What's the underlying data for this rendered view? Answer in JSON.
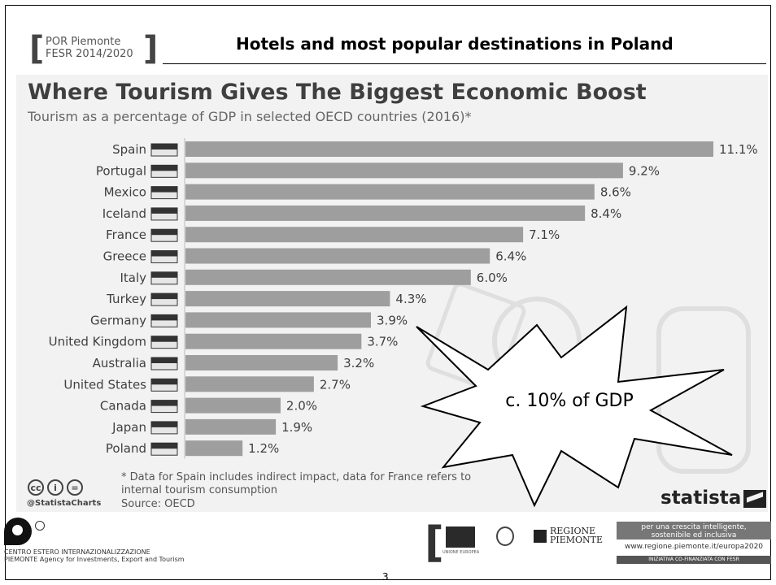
{
  "header": {
    "logo_text_line1": "POR Piemonte",
    "logo_text_line2": "FESR 2014/2020",
    "title": "Hotels and most popular destinations in Poland"
  },
  "chart_data": {
    "type": "bar",
    "orientation": "horizontal",
    "title": "Where Tourism Gives The Biggest Economic Boost",
    "subtitle": "Tourism as a percentage of GDP in selected OECD countries (2016)*",
    "categories": [
      "Spain",
      "Portugal",
      "Mexico",
      "Iceland",
      "France",
      "Greece",
      "Italy",
      "Turkey",
      "Germany",
      "United Kingdom",
      "Australia",
      "United States",
      "Canada",
      "Japan",
      "Poland"
    ],
    "values": [
      11.1,
      9.2,
      8.6,
      8.4,
      7.1,
      6.4,
      6.0,
      4.3,
      3.9,
      3.7,
      3.2,
      2.7,
      2.0,
      1.9,
      1.2
    ],
    "value_labels": [
      "11.1%",
      "9.2%",
      "8.6%",
      "8.4%",
      "7.1%",
      "6.4%",
      "6.0%",
      "4.3%",
      "3.9%",
      "3.7%",
      "3.2%",
      "2.7%",
      "2.0%",
      "1.9%",
      "1.2%"
    ],
    "xlim": [
      0,
      11.1
    ],
    "grid": false,
    "bar_color": "#9e9e9e",
    "annotation": "c. 10% of GDP"
  },
  "footer": {
    "footnote_line1": "* Data for Spain includes indirect impact, data for France refers to",
    "footnote_line2": "internal tourism consumption",
    "handle": "@StatistaCharts",
    "source": "Source: OECD",
    "brand": "statista",
    "ceip_line1": "CENTRO ESTERO INTERNAZIONALIZZAZIONE",
    "ceip_line2": "PIEMONTE Agency for Investments, Export and Tourism",
    "regione_line1": "REGIONE",
    "regione_line2": "PIEMONTE",
    "eu_label": "UNIONE EUROPEA",
    "box_line1": "per una crescita intelligente,",
    "box_line2": "sostenibile ed inclusiva",
    "box_url": "www.regione.piemonte.it/europa2020",
    "box_bottom": "INIZIATIVA CO-FINANZIATA CON FESR",
    "page_number": "3"
  }
}
